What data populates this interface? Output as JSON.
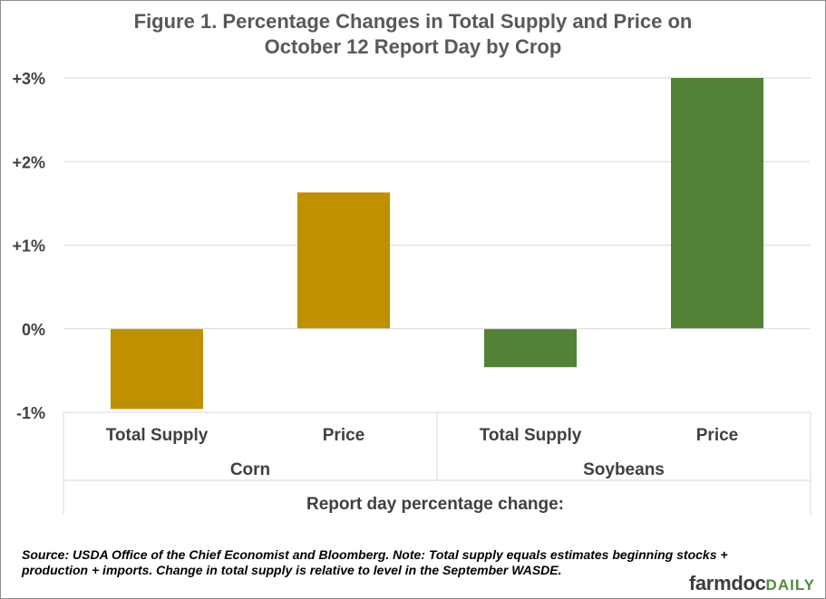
{
  "chart_data": {
    "type": "bar",
    "title": "Figure 1. Percentage Changes in Total Supply and Price on October 12 Report Day by Crop",
    "title_lines": [
      "Figure 1. Percentage Changes in Total Supply and Price on",
      "October 12 Report Day by Crop"
    ],
    "xlabel": "Report day percentage change:",
    "ylabel": "",
    "ylim": [
      -1,
      3
    ],
    "yticks": [
      -1,
      0,
      1,
      2,
      3
    ],
    "ytick_labels": [
      "-1%",
      "0%",
      "+1%",
      "+2%",
      "+3%"
    ],
    "grid": true,
    "groups": [
      {
        "name": "Corn",
        "color": "#bf9000",
        "categories": [
          "Total Supply",
          "Price"
        ],
        "values": [
          -0.96,
          1.63
        ]
      },
      {
        "name": "Soybeans",
        "color": "#538135",
        "categories": [
          "Total Supply",
          "Price"
        ],
        "values": [
          -0.46,
          3.0
        ]
      }
    ]
  },
  "note": "Source: USDA Office of the Chief Economist and Bloomberg. Note: Total supply equals estimates beginning stocks + production + imports. Change in total supply is relative to level in the September WASDE.",
  "logo": {
    "part1": "farmdoc",
    "part2": "DAILY"
  }
}
